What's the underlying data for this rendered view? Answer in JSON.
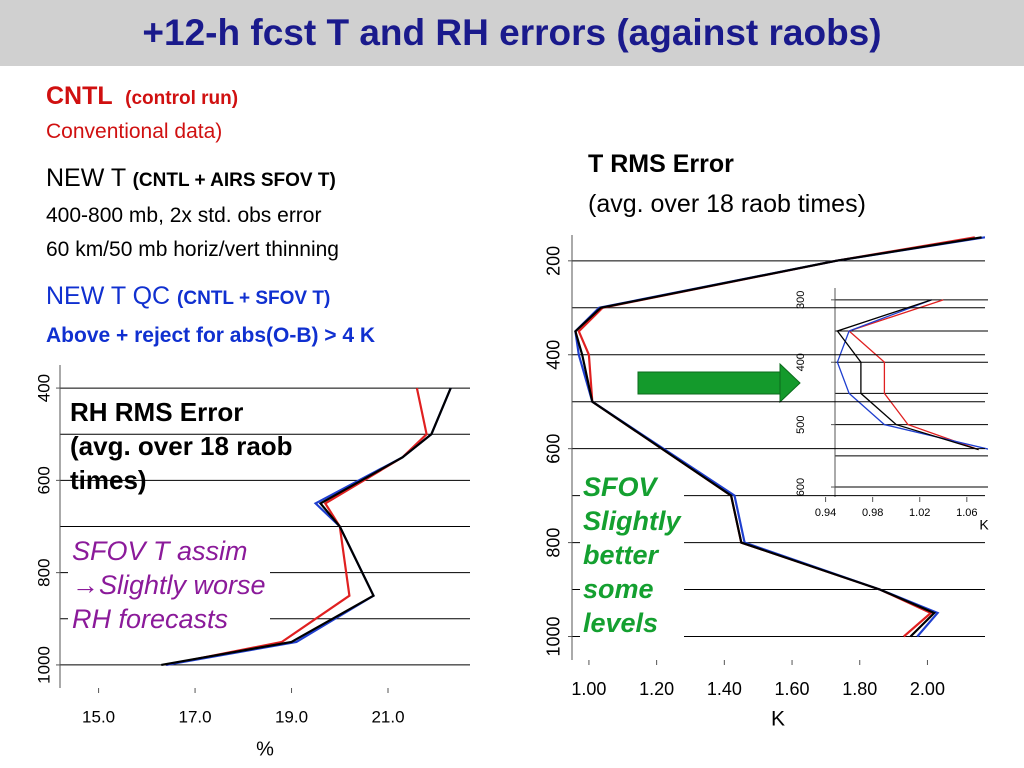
{
  "slide": {
    "title": "+12-h fcst T and RH errors (against raobs)",
    "cntl": "CNTL",
    "cntl_note": "(control run)",
    "cntl_desc": "Conventional data)",
    "newt": "NEW T",
    "newt_note": "(CNTL + AIRS SFOV T)",
    "newt_desc1": "400-800 mb, 2x std. obs error",
    "newt_desc2": "60 km/50 mb horiz/vert thinning",
    "qc": "NEW T QC",
    "qc_note": "(CNTL + SFOV T)",
    "qc_desc": "Above + reject for abs(O-B) > 4 K"
  },
  "chart_data": [
    {
      "type": "line",
      "title": "RH RMS Error",
      "subtitle": "(avg. over 18 raob times)",
      "annotation": [
        "SFOV T assim",
        "→Slightly worse",
        "RH forecasts"
      ],
      "xlabel": "%",
      "y": [
        400,
        500,
        550,
        650,
        700,
        850,
        950,
        1000
      ],
      "series": [
        {
          "color": "#e02020",
          "values": [
            21.6,
            21.8,
            21.3,
            19.7,
            20.0,
            20.2,
            18.8,
            16.4
          ]
        },
        {
          "color": "#1f3fcf",
          "values": [
            22.3,
            21.9,
            21.3,
            19.5,
            20.0,
            20.7,
            19.1,
            16.4
          ]
        },
        {
          "color": "#000000",
          "values": [
            22.3,
            21.9,
            21.3,
            19.6,
            20.0,
            20.7,
            19.0,
            16.3
          ]
        }
      ],
      "xlim": [
        14.2,
        22.7
      ],
      "ylim": [
        350,
        1050
      ],
      "y_inverted": true,
      "xticks": [
        {
          "value": 15,
          "label": "15.0"
        },
        {
          "value": 17,
          "label": "17.0"
        },
        {
          "value": 19,
          "label": "19.0"
        },
        {
          "value": 21,
          "label": "21.0"
        }
      ],
      "yticks": [
        400,
        600,
        800,
        1000
      ],
      "ygrid": [
        400,
        500,
        600,
        700,
        800,
        900,
        1000
      ]
    },
    {
      "type": "line",
      "title": "T RMS Error",
      "subtitle": "(avg. over 18 raob times)",
      "annotation": [
        "SFOV",
        "Slightly",
        "better",
        "some",
        "levels"
      ],
      "xlabel": "K",
      "y": [
        150,
        200,
        300,
        350,
        400,
        500,
        700,
        800,
        900,
        950,
        1000
      ],
      "series": [
        {
          "color": "#e02020",
          "values": [
            2.14,
            1.73,
            1.04,
            0.97,
            1.0,
            1.01,
            1.42,
            1.45,
            1.86,
            2.01,
            1.93
          ]
        },
        {
          "color": "#1f3fcf",
          "values": [
            2.17,
            1.73,
            1.03,
            0.96,
            0.97,
            1.01,
            1.43,
            1.46,
            1.86,
            2.03,
            1.97
          ]
        },
        {
          "color": "#000000",
          "values": [
            2.16,
            1.73,
            1.035,
            0.96,
            0.98,
            1.01,
            1.42,
            1.45,
            1.86,
            2.02,
            1.95
          ]
        }
      ],
      "xlim": [
        0.95,
        2.17
      ],
      "ylim": [
        145,
        1050
      ],
      "y_inverted": true,
      "xticks": [
        {
          "value": 1,
          "label": "1.00"
        },
        {
          "value": 1.2,
          "label": "1.20"
        },
        {
          "value": 1.4,
          "label": "1.40"
        },
        {
          "value": 1.6,
          "label": "1.60"
        },
        {
          "value": 1.8,
          "label": "1.80"
        },
        {
          "value": 2,
          "label": "2.00"
        }
      ],
      "yticks": [
        200,
        400,
        600,
        800,
        1000
      ],
      "ygrid": [
        200,
        300,
        400,
        500,
        600,
        700,
        800,
        900,
        1000
      ]
    },
    {
      "type": "line",
      "xlabel": "K",
      "y": [
        300,
        350,
        400,
        450,
        500,
        540
      ],
      "series": [
        {
          "color": "#e02020",
          "values": [
            1.04,
            0.96,
            0.99,
            0.99,
            1.01,
            1.07
          ]
        },
        {
          "color": "#1f3fcf",
          "values": [
            1.03,
            0.96,
            0.95,
            0.96,
            0.99,
            1.08
          ]
        },
        {
          "color": "#000000",
          "values": [
            1.03,
            0.95,
            0.97,
            0.97,
            1.0,
            1.07
          ]
        }
      ],
      "xlim": [
        0.948,
        1.078
      ],
      "ylim": [
        281,
        616
      ],
      "y_inverted": true,
      "xticks": [
        0.94,
        0.98,
        1.02,
        1.06
      ],
      "yticks": [
        300,
        400,
        500,
        600
      ],
      "ygrid": [
        300,
        350,
        400,
        450,
        500,
        550,
        600
      ]
    }
  ]
}
